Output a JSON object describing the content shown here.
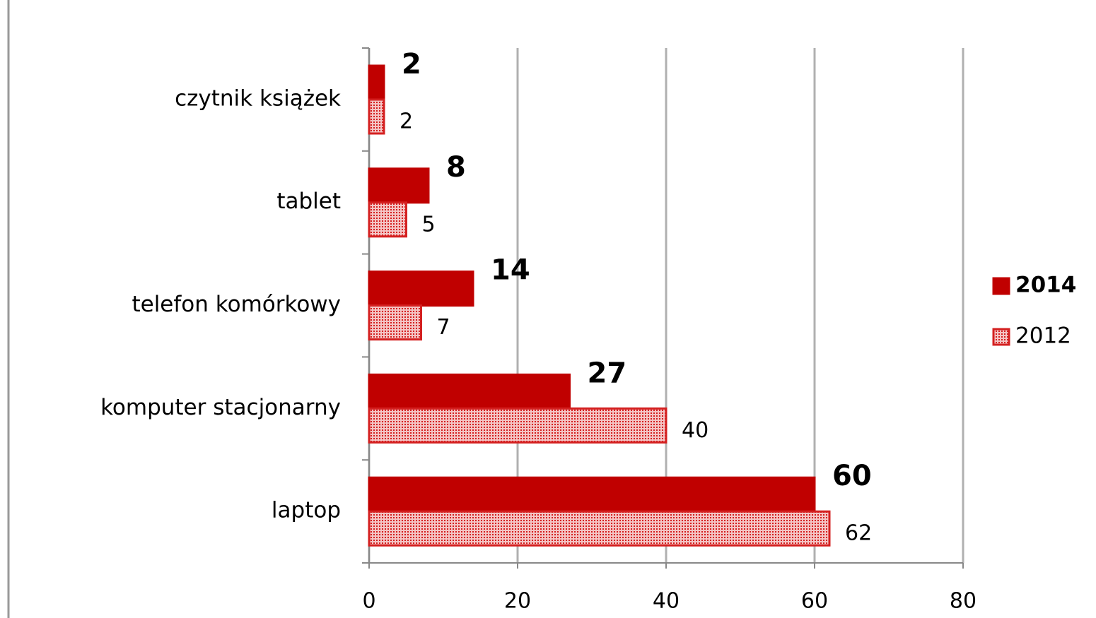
{
  "chart_data": {
    "type": "bar",
    "orientation": "horizontal",
    "categories": [
      "czytnik książek",
      "tablet",
      "telefon komórkowy",
      "komputer stacjonarny",
      "laptop"
    ],
    "series": [
      {
        "name": "2014",
        "color": "#c00000",
        "values": [
          2,
          8,
          14,
          27,
          60
        ]
      },
      {
        "name": "2012",
        "color": "#d42020",
        "hatch": "dots",
        "values": [
          2,
          5,
          7,
          40,
          62
        ]
      }
    ],
    "xlim": [
      0,
      80
    ],
    "xticks": [
      0,
      20,
      40,
      60,
      80
    ],
    "grid": true,
    "legend": "right"
  }
}
